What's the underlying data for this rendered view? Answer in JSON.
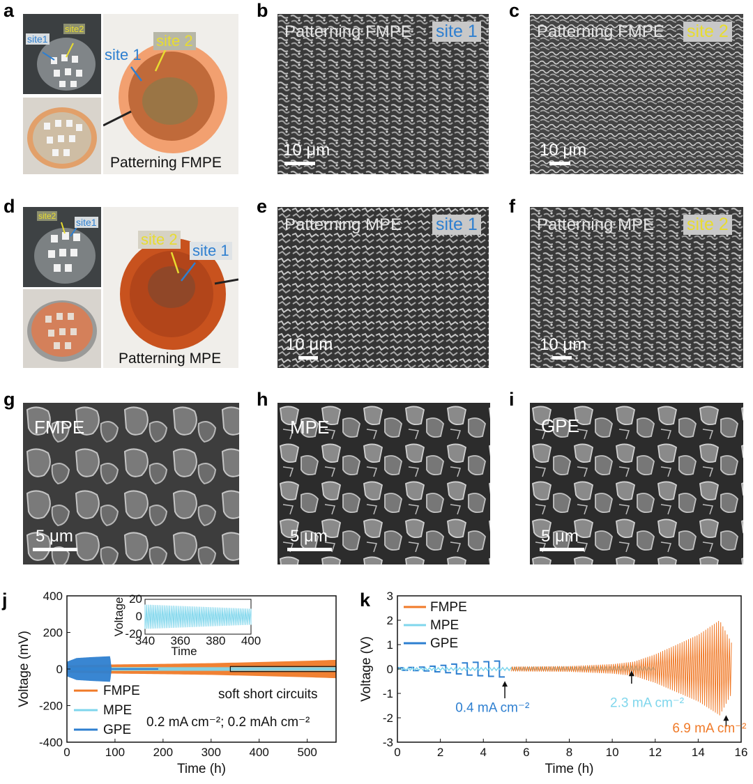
{
  "panel_labels": {
    "a": "a",
    "b": "b",
    "c": "c",
    "d": "d",
    "e": "e",
    "f": "f",
    "g": "g",
    "h": "h",
    "i": "i",
    "j": "j",
    "k": "k"
  },
  "panel_a": {
    "inset_site1": "site1",
    "inset_site2": "site2",
    "site1": "site 1",
    "site2": "site 2",
    "caption": "Patterning FMPE"
  },
  "panel_b": {
    "title": "Patterning FMPE",
    "site": "site 1",
    "scale": "10 μm"
  },
  "panel_c": {
    "title": "Patterning FMPE",
    "site": "site 2",
    "scale": "10 μm"
  },
  "panel_d": {
    "inset_site2": "site2",
    "inset_site1": "site1",
    "site2": "site 2",
    "site1": "site 1",
    "caption": "Patterning MPE"
  },
  "panel_e": {
    "title": "Patterning MPE",
    "site": "site 1",
    "scale": "10 μm"
  },
  "panel_f": {
    "title": "Patterning MPE",
    "site": "site 2",
    "scale": "10 μm"
  },
  "panel_g": {
    "title": "FMPE",
    "scale": "5 μm"
  },
  "panel_h": {
    "title": "MPE",
    "scale": "5 μm"
  },
  "panel_i": {
    "title": "GPE",
    "scale": "5 μm"
  },
  "colors": {
    "FMPE": "#f07a28",
    "MPE": "#7fd6ec",
    "GPE": "#2e7fd0"
  },
  "chart_data": [
    {
      "type": "line",
      "panel": "j",
      "xlabel": "Time (h)",
      "ylabel": "Voltage (mV)",
      "xlim": [
        0,
        560
      ],
      "ylim": [
        -400,
        400
      ],
      "xticks": [
        "0",
        "100",
        "200",
        "300",
        "400",
        "500"
      ],
      "yticks": [
        "400",
        "200",
        "0",
        "-200",
        "-400"
      ],
      "series": [
        {
          "name": "FMPE",
          "envelope_x": [
            0,
            100,
            200,
            300,
            400,
            500,
            560
          ],
          "envelope_amp": [
            20,
            25,
            28,
            32,
            38,
            45,
            50
          ]
        },
        {
          "name": "MPE",
          "envelope_x": [
            0,
            100,
            200,
            300,
            400,
            500,
            560
          ],
          "envelope_amp": [
            8,
            10,
            10,
            10,
            10,
            10,
            10
          ]
        },
        {
          "name": "GPE",
          "envelope_x": [
            0,
            20,
            50,
            90,
            93
          ],
          "envelope_amp": [
            40,
            60,
            65,
            70,
            0
          ]
        }
      ],
      "annotations": [
        "soft short circuits",
        "0.2 mA cm⁻²; 0.2 mAh cm⁻²"
      ],
      "inset": {
        "xlabel": "Time",
        "ylabel": "Voltage",
        "xlim": [
          340,
          400
        ],
        "ylim": [
          -20,
          20
        ],
        "xticks": [
          "340",
          "360",
          "380",
          "400"
        ],
        "yticks": [
          "20",
          "0",
          "-20"
        ]
      }
    },
    {
      "type": "line",
      "panel": "k",
      "xlabel": "Time (h)",
      "ylabel": "Voltage (V)",
      "xlim": [
        0,
        16
      ],
      "ylim": [
        -3,
        3
      ],
      "xticks": [
        "0",
        "2",
        "4",
        "6",
        "8",
        "10",
        "12",
        "14",
        "16"
      ],
      "yticks": [
        "3",
        "2",
        "1",
        "0",
        "-1",
        "-2",
        "-3"
      ],
      "series": [
        {
          "name": "FMPE",
          "envelope_x": [
            5.3,
            8,
            10,
            11,
            12,
            13,
            14,
            15,
            15.6
          ],
          "envelope_amp": [
            0.1,
            0.12,
            0.2,
            0.3,
            0.6,
            1.0,
            1.4,
            2.0,
            1.0
          ]
        },
        {
          "name": "MPE",
          "envelope_x": [
            0,
            5,
            10,
            11,
            12
          ],
          "envelope_amp": [
            0.05,
            0.06,
            0.08,
            0.1,
            0.05
          ]
        },
        {
          "name": "GPE",
          "envelope_x": [
            0,
            1,
            2,
            3,
            4,
            5
          ],
          "envelope_amp": [
            0.05,
            0.08,
            0.15,
            0.25,
            0.3,
            0.35
          ]
        }
      ],
      "annotations": [
        "0.4 mA cm⁻²",
        "2.3 mA cm⁻²",
        "6.9 mA cm⁻²"
      ]
    }
  ]
}
